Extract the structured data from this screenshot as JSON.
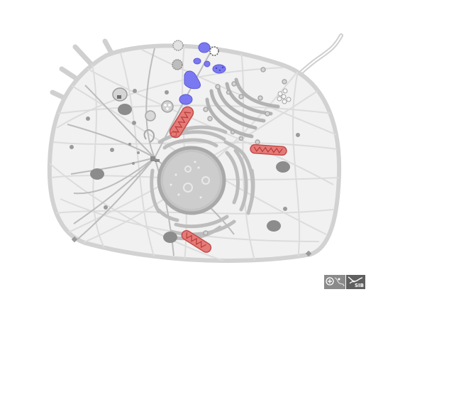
{
  "colors": {
    "cytoskeleton": "#d9d9d9",
    "microtubule": "#bcbcbc",
    "membrane_fill": "#f1f1f1",
    "membrane_stroke": "#d2d2d2",
    "organelle_dark": "#8c8c8c",
    "organelle_mid": "#b5b5b5",
    "nucleus_fill": "#c4c4c4",
    "mitochondria": "#e57b78",
    "mitochondria_stroke": "#c24b48",
    "golgi_blue": "#7b79f2",
    "logo_left": "#8a8a8a",
    "logo_right": "#5f5f5f"
  },
  "logos": {
    "left_icon": "swissprot-expasy-icon",
    "right_icon": "sib-logo-icon",
    "right_text": "SIB"
  }
}
